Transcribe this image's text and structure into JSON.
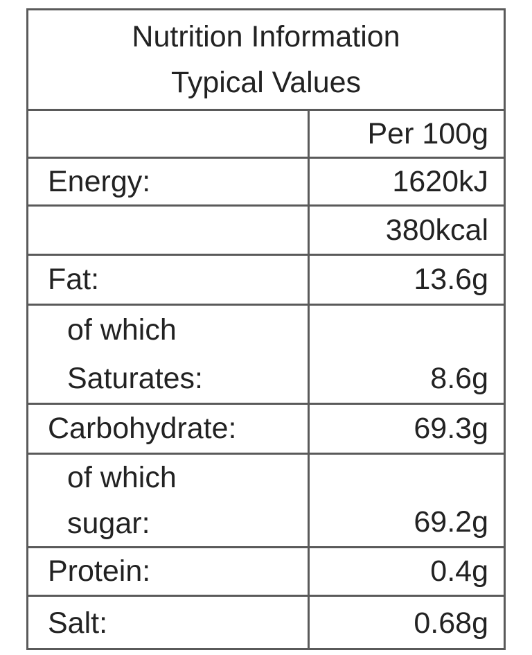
{
  "header": {
    "title": [
      "Nutrition Information",
      "Typical Values"
    ]
  },
  "table": {
    "column_header": "Per 100g",
    "rows": [
      {
        "label": "Energy:",
        "value": "1620kJ"
      },
      {
        "value": "380kcal"
      },
      {
        "label": "Fat:",
        "value": "13.6g"
      },
      {
        "label": [
          "of which",
          "Saturates:"
        ],
        "value": "8.6g"
      },
      {
        "label": "Carbohydrate:",
        "value": "69.3g"
      },
      {
        "label": [
          "of which",
          "sugar:"
        ],
        "value": "69.2g"
      },
      {
        "label": "Protein:",
        "value": "0.4g"
      },
      {
        "label": "Salt:",
        "value": "0.68g"
      }
    ]
  }
}
